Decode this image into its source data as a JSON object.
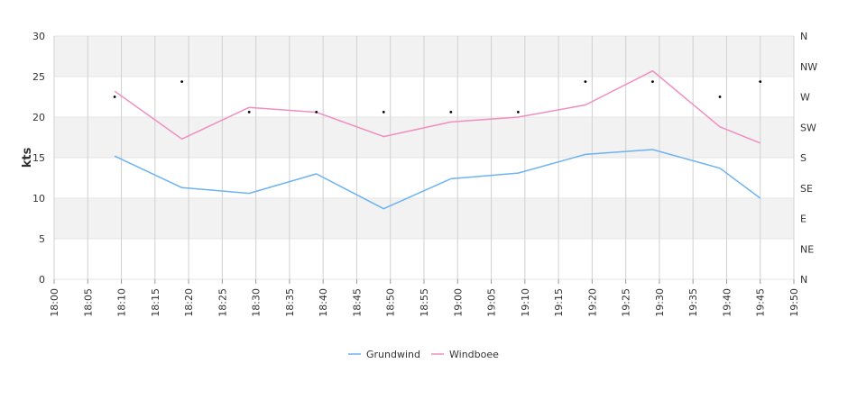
{
  "chart_data": {
    "type": "line",
    "ylabel": "kts",
    "ylim": [
      0,
      30
    ],
    "y_ticks": [
      "0",
      "5",
      "10",
      "15",
      "20",
      "25",
      "30"
    ],
    "y2_ticks": [
      "N",
      "NE",
      "E",
      "SE",
      "S",
      "SW",
      "W",
      "NW",
      "N"
    ],
    "x_ticks": [
      "18:00",
      "18:05",
      "18:10",
      "18:15",
      "18:20",
      "18:25",
      "18:30",
      "18:35",
      "18:40",
      "18:45",
      "18:50",
      "18:55",
      "19:00",
      "19:05",
      "19:10",
      "19:15",
      "19:20",
      "19:25",
      "19:30",
      "19:35",
      "19:40",
      "19:45",
      "19:50"
    ],
    "xlim": [
      "18:00",
      "19:50"
    ],
    "grid": true,
    "legend_position": "bottom-center",
    "series": [
      {
        "name": "Grundwind",
        "color": "#6db3f2",
        "x": [
          "18:09",
          "18:19",
          "18:29",
          "18:39",
          "18:49",
          "18:59",
          "19:09",
          "19:19",
          "19:29",
          "19:39",
          "19:45"
        ],
        "values": [
          15.2,
          11.3,
          10.6,
          13.0,
          8.7,
          12.4,
          13.1,
          15.4,
          16.0,
          13.7,
          10.0
        ]
      },
      {
        "name": "Windboee",
        "color": "#f08ec0",
        "x": [
          "18:09",
          "18:19",
          "18:29",
          "18:39",
          "18:49",
          "18:59",
          "19:09",
          "19:19",
          "19:29",
          "19:39",
          "19:45"
        ],
        "values": [
          23.2,
          17.3,
          21.2,
          20.6,
          17.6,
          19.4,
          20.0,
          21.5,
          25.7,
          18.8,
          16.8
        ]
      }
    ],
    "direction": {
      "x": [
        "18:09",
        "18:19",
        "18:29",
        "18:39",
        "18:49",
        "18:59",
        "19:09",
        "19:19",
        "19:29",
        "19:39",
        "19:45"
      ],
      "values": [
        "W",
        "WNW",
        "WSW",
        "WSW",
        "WSW",
        "WSW",
        "WSW",
        "WNW",
        "WNW",
        "W",
        "WNW"
      ]
    }
  }
}
